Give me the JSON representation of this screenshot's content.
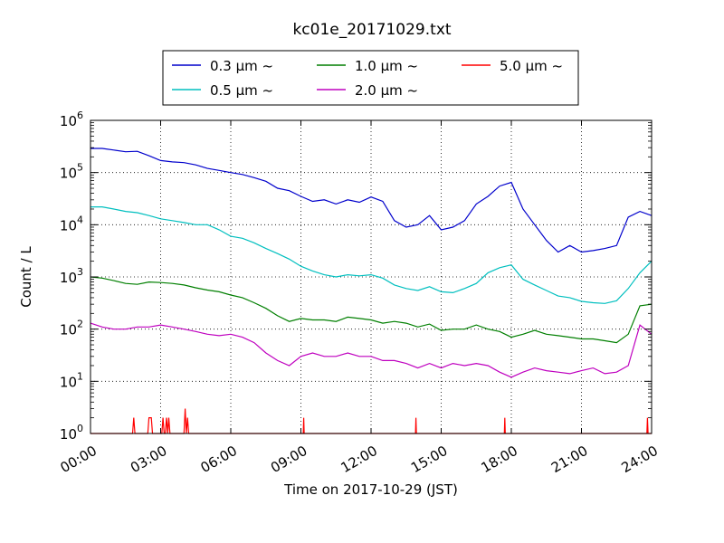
{
  "chart_data": {
    "type": "line",
    "title": "kc01e_20171029.txt",
    "xlabel": "Time on 2017-10-29 (JST)",
    "ylabel": "Count / L",
    "yscale": "log",
    "ylim": [
      1,
      1000000
    ],
    "xlim": [
      "00:00",
      "24:00"
    ],
    "x_ticks": [
      "00:00",
      "03:00",
      "06:00",
      "09:00",
      "12:00",
      "15:00",
      "18:00",
      "21:00",
      "24:00"
    ],
    "y_ticks": [
      {
        "base": "10",
        "exp": "0",
        "value": 1
      },
      {
        "base": "10",
        "exp": "1",
        "value": 10
      },
      {
        "base": "10",
        "exp": "2",
        "value": 100
      },
      {
        "base": "10",
        "exp": "3",
        "value": 1000
      },
      {
        "base": "10",
        "exp": "4",
        "value": 10000
      },
      {
        "base": "10",
        "exp": "5",
        "value": 100000
      },
      {
        "base": "10",
        "exp": "6",
        "value": 1000000
      }
    ],
    "grid": true,
    "legend_position": "top",
    "series": [
      {
        "name": "0.3 μm ~",
        "color": "#0000cc",
        "hours": [
          0,
          0.5,
          1,
          1.5,
          2,
          2.5,
          3,
          3.5,
          4,
          4.5,
          5,
          5.5,
          6,
          6.5,
          7,
          7.5,
          8,
          8.5,
          9,
          9.5,
          10,
          10.5,
          11,
          11.5,
          12,
          12.5,
          13,
          13.5,
          14,
          14.5,
          15,
          15.5,
          16,
          16.5,
          17,
          17.5,
          18,
          18.5,
          19,
          19.5,
          20,
          20.5,
          21,
          21.5,
          22,
          22.5,
          23,
          23.5,
          24
        ],
        "values": [
          290000,
          290000,
          270000,
          250000,
          255000,
          210000,
          170000,
          160000,
          155000,
          140000,
          120000,
          110000,
          100000,
          92000,
          80000,
          68000,
          50000,
          45000,
          35000,
          28000,
          30000,
          25000,
          30000,
          27000,
          34000,
          28000,
          12000,
          9000,
          10000,
          15000,
          8000,
          9000,
          12000,
          25000,
          35000,
          55000,
          65000,
          20000,
          10000,
          5000,
          3000,
          4000,
          3000,
          3200,
          3500,
          4000,
          14000,
          18000,
          15000
        ]
      },
      {
        "name": "0.5 μm ~",
        "color": "#00bfbf",
        "hours": [
          0,
          0.5,
          1,
          1.5,
          2,
          2.5,
          3,
          3.5,
          4,
          4.5,
          5,
          5.5,
          6,
          6.5,
          7,
          7.5,
          8,
          8.5,
          9,
          9.5,
          10,
          10.5,
          11,
          11.5,
          12,
          12.5,
          13,
          13.5,
          14,
          14.5,
          15,
          15.5,
          16,
          16.5,
          17,
          17.5,
          18,
          18.5,
          19,
          19.5,
          20,
          20.5,
          21,
          21.5,
          22,
          22.5,
          23,
          23.5,
          24
        ],
        "values": [
          22000,
          22000,
          20000,
          18000,
          17000,
          15000,
          13000,
          12000,
          11000,
          10000,
          10000,
          8000,
          6000,
          5500,
          4500,
          3500,
          2800,
          2200,
          1600,
          1300,
          1100,
          1000,
          1100,
          1050,
          1100,
          950,
          700,
          600,
          550,
          650,
          520,
          500,
          600,
          750,
          1200,
          1500,
          1700,
          900,
          700,
          550,
          430,
          400,
          340,
          320,
          310,
          350,
          600,
          1200,
          2000
        ]
      },
      {
        "name": "1.0 μm ~",
        "color": "#007f00",
        "hours": [
          0,
          0.5,
          1,
          1.5,
          2,
          2.5,
          3,
          3.5,
          4,
          4.5,
          5,
          5.5,
          6,
          6.5,
          7,
          7.5,
          8,
          8.5,
          9,
          9.5,
          10,
          10.5,
          11,
          11.5,
          12,
          12.5,
          13,
          13.5,
          14,
          14.5,
          15,
          15.5,
          16,
          16.5,
          17,
          17.5,
          18,
          18.5,
          19,
          19.5,
          20,
          20.5,
          21,
          21.5,
          22,
          22.5,
          23,
          23.5,
          24
        ],
        "values": [
          1000,
          950,
          850,
          750,
          720,
          800,
          780,
          750,
          700,
          620,
          560,
          520,
          450,
          400,
          320,
          250,
          180,
          140,
          160,
          150,
          150,
          140,
          170,
          160,
          150,
          130,
          140,
          130,
          110,
          125,
          95,
          100,
          100,
          120,
          100,
          90,
          70,
          80,
          95,
          80,
          75,
          70,
          65,
          65,
          60,
          55,
          80,
          280,
          300
        ]
      },
      {
        "name": "2.0 μm ~",
        "color": "#bf00bf",
        "hours": [
          0,
          0.5,
          1,
          1.5,
          2,
          2.5,
          3,
          3.5,
          4,
          4.5,
          5,
          5.5,
          6,
          6.5,
          7,
          7.5,
          8,
          8.5,
          9,
          9.5,
          10,
          10.5,
          11,
          11.5,
          12,
          12.5,
          13,
          13.5,
          14,
          14.5,
          15,
          15.5,
          16,
          16.5,
          17,
          17.5,
          18,
          18.5,
          19,
          19.5,
          20,
          20.5,
          21,
          21.5,
          22,
          22.5,
          23,
          23.5,
          24
        ],
        "values": [
          130,
          110,
          100,
          100,
          110,
          110,
          120,
          110,
          100,
          90,
          80,
          75,
          80,
          70,
          55,
          35,
          25,
          20,
          30,
          35,
          30,
          30,
          35,
          30,
          30,
          25,
          25,
          22,
          18,
          22,
          18,
          22,
          20,
          22,
          20,
          15,
          12,
          15,
          18,
          16,
          15,
          14,
          16,
          18,
          14,
          15,
          20,
          120,
          80
        ]
      },
      {
        "name": "5.0 μm ~",
        "color": "#ff0000",
        "hours": [
          0,
          1.8,
          1.85,
          1.9,
          2,
          2.45,
          2.5,
          2.6,
          2.65,
          2.7,
          3,
          3.05,
          3.1,
          3.15,
          3.2,
          3.25,
          3.3,
          3.35,
          3.4,
          4,
          4.05,
          4.1,
          4.15,
          4.2,
          4.25,
          4.3,
          9.1,
          9.12,
          9.14,
          9.16,
          13.9,
          13.92,
          13.94,
          17.7,
          17.72,
          17.74,
          23.8,
          23.82,
          23.85,
          23.88,
          24
        ],
        "values": [
          1,
          1,
          2,
          1,
          1,
          1,
          2,
          2,
          1,
          1,
          1,
          1,
          2,
          1,
          1,
          2,
          1,
          2,
          1,
          1,
          3,
          1,
          2,
          1,
          1,
          1,
          1,
          2,
          1,
          1,
          1,
          2,
          1,
          1,
          2,
          1,
          1,
          2,
          1,
          1,
          1
        ]
      }
    ]
  }
}
